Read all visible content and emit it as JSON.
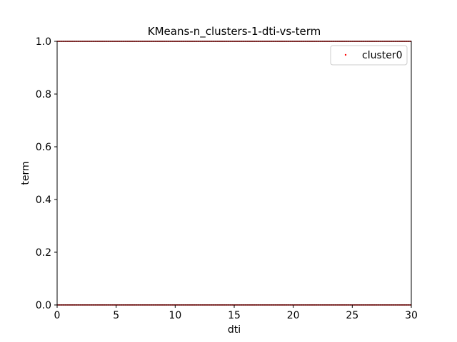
{
  "chart_data": {
    "type": "scatter",
    "title": "KMeans-n_clusters-1-dti-vs-term",
    "xlabel": "dti",
    "ylabel": "term",
    "xlim": [
      0,
      30
    ],
    "ylim": [
      0.0,
      1.0
    ],
    "x_ticks": [
      "0",
      "5",
      "10",
      "15",
      "20",
      "25",
      "30"
    ],
    "y_ticks": [
      "0.0",
      "0.2",
      "0.4",
      "0.6",
      "0.8",
      "1.0"
    ],
    "grid": false,
    "legend_position": "top-right",
    "series": [
      {
        "name": "cluster0",
        "color": "#ff0000",
        "y_levels": [
          0,
          1
        ],
        "x_range": [
          0,
          30
        ]
      }
    ]
  }
}
